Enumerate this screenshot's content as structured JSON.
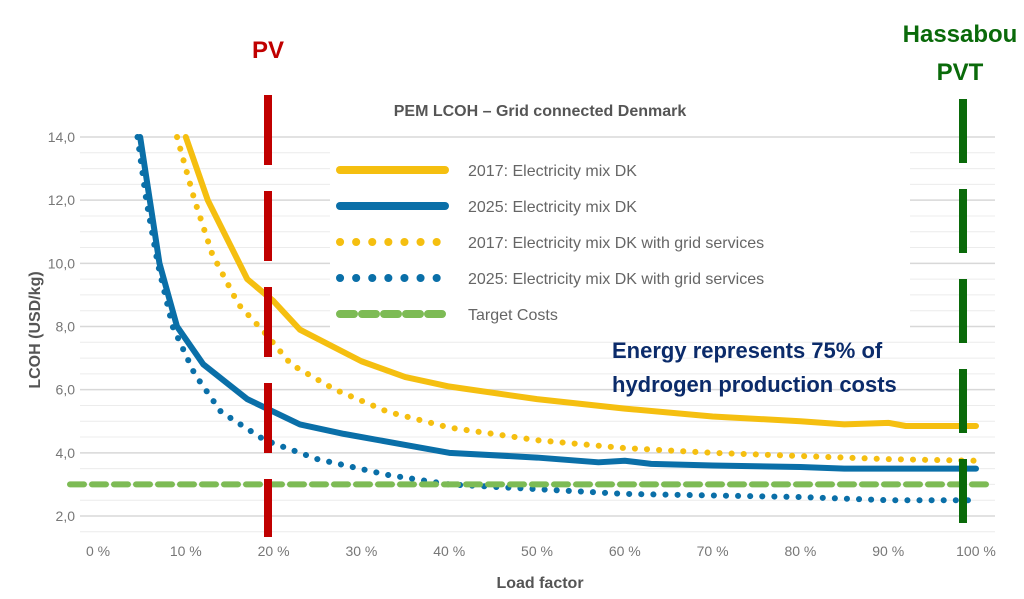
{
  "chart_data": {
    "type": "line",
    "title": "PEM LCOH – Grid connected Denmark",
    "xlabel": "Load factor",
    "ylabel": "LCOH (USD/kg)",
    "xlim": [
      0,
      100
    ],
    "ylim": [
      2,
      14
    ],
    "x_ticks": [
      "0 %",
      "10 %",
      "20 %",
      "30 %",
      "40 %",
      "50 %",
      "60 %",
      "70 %",
      "80 %",
      "90 %",
      "100 %"
    ],
    "y_ticks": [
      "2,0",
      "4,0",
      "6,0",
      "8,0",
      "10,0",
      "12,0",
      "14,0"
    ],
    "grid": true,
    "legend_placement": "top-center",
    "series": [
      {
        "name": "2017: Electricity mix DK",
        "color": "#f5bf10",
        "style": "solid",
        "x": [
          10,
          12.5,
          17,
          20,
          23,
          30,
          35,
          40,
          50,
          60,
          70,
          80,
          85,
          90,
          92,
          100
        ],
        "y": [
          14,
          12,
          9.5,
          8.8,
          7.9,
          6.9,
          6.4,
          6.1,
          5.7,
          5.4,
          5.15,
          5.0,
          4.9,
          4.95,
          4.85,
          4.85
        ]
      },
      {
        "name": "2025: Electricity mix DK",
        "color": "#0a6fa8",
        "style": "solid",
        "x": [
          4.8,
          7,
          9,
          12,
          17,
          20,
          23,
          28,
          35,
          40,
          50,
          57,
          60,
          63,
          70,
          80,
          85,
          100
        ],
        "y": [
          14,
          10,
          8,
          6.8,
          5.7,
          5.3,
          4.9,
          4.6,
          4.25,
          4.0,
          3.85,
          3.7,
          3.75,
          3.65,
          3.6,
          3.55,
          3.5,
          3.5
        ]
      },
      {
        "name": "2017: Electricity mix DK with grid services",
        "color": "#f5bf10",
        "style": "dotted",
        "x": [
          9,
          11,
          13,
          16,
          19,
          22,
          27,
          33,
          40,
          50,
          60,
          70,
          80,
          90,
          100
        ],
        "y": [
          14,
          12,
          10.3,
          8.7,
          7.8,
          6.8,
          6.0,
          5.3,
          4.8,
          4.4,
          4.15,
          4.0,
          3.9,
          3.8,
          3.75
        ]
      },
      {
        "name": "2025: Electricity mix DK with grid services",
        "color": "#0a6fa8",
        "style": "dotted",
        "x": [
          4.5,
          5.5,
          6.8,
          8.5,
          11,
          14,
          19,
          25,
          33,
          40,
          50,
          60,
          70,
          80,
          90,
          100
        ],
        "y": [
          14,
          12,
          10,
          8,
          6.5,
          5.3,
          4.4,
          3.8,
          3.3,
          3.0,
          2.85,
          2.7,
          2.65,
          2.6,
          2.5,
          2.5
        ]
      },
      {
        "name": "Target Costs",
        "color": "#7dbb55",
        "style": "dashed",
        "x": [
          0,
          100
        ],
        "y": [
          3.0,
          3.0
        ]
      }
    ],
    "annotations": [
      {
        "text": "Energy represents 75% of"
      },
      {
        "text": "hydrogen production costs"
      }
    ],
    "markers": [
      {
        "label": "PV",
        "x": 19,
        "color": "#c00000"
      },
      {
        "label_lines": [
          "Hassabou",
          "PVT"
        ],
        "x": 98,
        "color": "#0a6a0a"
      }
    ]
  }
}
